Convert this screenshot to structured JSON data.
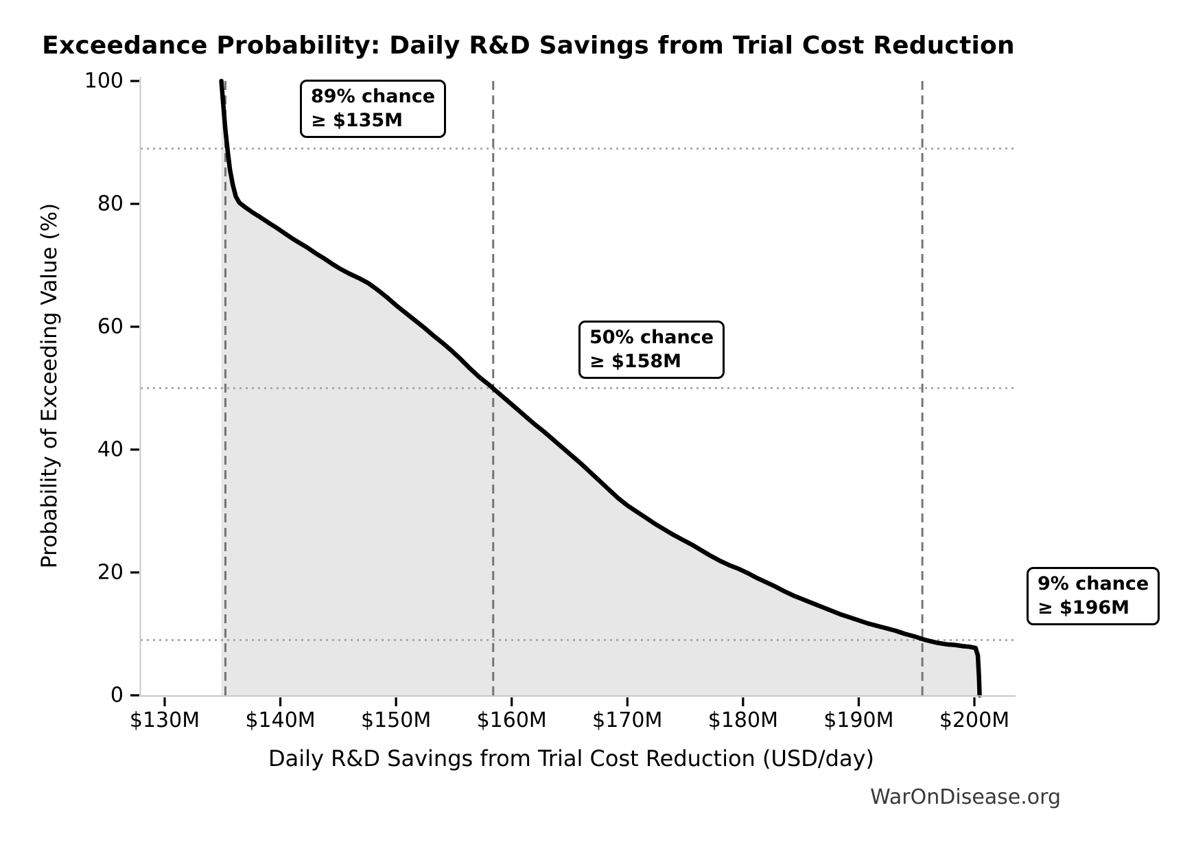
{
  "watermark": "WarOnDisease.org",
  "chart_data": {
    "type": "line",
    "title": "Exceedance Probability: Daily R&D Savings from Trial Cost Reduction",
    "xlabel": "Daily R&D Savings from Trial Cost Reduction (USD/day)",
    "ylabel": "Probability of Exceeding Value (%)",
    "x_unit": "USD millions per day",
    "xlim": [
      127.9,
      203.6
    ],
    "ylim": [
      0,
      100
    ],
    "grid": {
      "horizontal_dotted_pcts": [
        89,
        50,
        9
      ],
      "vertical_dashed_values": [
        135.25,
        158.4,
        195.5
      ]
    },
    "legend": "none",
    "x_tick_values": [
      130,
      140,
      150,
      160,
      170,
      180,
      190,
      200
    ],
    "x_tick_labels": [
      "$130M",
      "$140M",
      "$150M",
      "$160M",
      "$170M",
      "$180M",
      "$190M",
      "$200M"
    ],
    "y_tick_values": [
      0,
      20,
      40,
      60,
      80,
      100
    ],
    "y_tick_labels": [
      "0",
      "20",
      "40",
      "60",
      "80",
      "100"
    ],
    "annotations": [
      {
        "line1": "89% chance",
        "line2": "≥ $135M",
        "anchor_value_musd": 135,
        "anchor_pct": 89
      },
      {
        "line1": "50% chance",
        "line2": "≥ $158M",
        "anchor_value_musd": 158,
        "anchor_pct": 50
      },
      {
        "line1": "9% chance",
        "line2": "≥ $196M",
        "anchor_value_musd": 196,
        "anchor_pct": 9
      }
    ],
    "colors": {
      "curve": "#000000",
      "fill": "#e7e7e7",
      "dashed_guide": "#757575",
      "dotted_guide": "#aaaaaa",
      "spine": "#c9c9c9",
      "tick": "#000000",
      "annotation_bg": "#ffffff",
      "annotation_border": "#000000",
      "watermark_text": "#3a3a3a"
    },
    "series": [
      {
        "name": "Exceedance probability curve",
        "points": [
          [
            134.9,
            100
          ],
          [
            135.05,
            96.5
          ],
          [
            135.25,
            92
          ],
          [
            135.45,
            88.5
          ],
          [
            135.65,
            85.5
          ],
          [
            135.9,
            83
          ],
          [
            136.15,
            81.2
          ],
          [
            136.45,
            80.2
          ],
          [
            137,
            79.4
          ],
          [
            137.6,
            78.6
          ],
          [
            138.2,
            77.9
          ],
          [
            139,
            76.9
          ],
          [
            139.6,
            76.2
          ],
          [
            140.3,
            75.3
          ],
          [
            141,
            74.4
          ],
          [
            141.7,
            73.6
          ],
          [
            142.4,
            72.8
          ],
          [
            143.1,
            71.9
          ],
          [
            143.8,
            71.1
          ],
          [
            144.5,
            70.2
          ],
          [
            145.2,
            69.4
          ],
          [
            146,
            68.6
          ],
          [
            146.8,
            67.9
          ],
          [
            147.6,
            67.1
          ],
          [
            148.4,
            66
          ],
          [
            149.2,
            64.8
          ],
          [
            150,
            63.5
          ],
          [
            150.8,
            62.3
          ],
          [
            151.6,
            61.1
          ],
          [
            152.4,
            59.9
          ],
          [
            153.2,
            58.6
          ],
          [
            154,
            57.4
          ],
          [
            154.8,
            56.1
          ],
          [
            155.6,
            54.7
          ],
          [
            156.4,
            53.2
          ],
          [
            157.2,
            51.8
          ],
          [
            158,
            50.6
          ],
          [
            158.8,
            49.3
          ],
          [
            159.6,
            48
          ],
          [
            160.4,
            46.7
          ],
          [
            161.2,
            45.4
          ],
          [
            162,
            44.1
          ],
          [
            162.8,
            42.9
          ],
          [
            163.6,
            41.6
          ],
          [
            164.4,
            40.3
          ],
          [
            165.2,
            39
          ],
          [
            166,
            37.7
          ],
          [
            166.8,
            36.3
          ],
          [
            167.6,
            34.9
          ],
          [
            168.4,
            33.5
          ],
          [
            169.2,
            32.1
          ],
          [
            170,
            30.9
          ],
          [
            170.8,
            29.9
          ],
          [
            171.6,
            28.9
          ],
          [
            172.4,
            27.9
          ],
          [
            173.2,
            27
          ],
          [
            174,
            26.1
          ],
          [
            174.8,
            25.3
          ],
          [
            175.6,
            24.5
          ],
          [
            176.4,
            23.6
          ],
          [
            177.2,
            22.7
          ],
          [
            178,
            21.9
          ],
          [
            178.8,
            21.2
          ],
          [
            179.6,
            20.6
          ],
          [
            180.4,
            19.9
          ],
          [
            181.2,
            19.1
          ],
          [
            182,
            18.4
          ],
          [
            182.8,
            17.7
          ],
          [
            183.6,
            16.9
          ],
          [
            184.4,
            16.2
          ],
          [
            185.2,
            15.6
          ],
          [
            186,
            15
          ],
          [
            186.8,
            14.4
          ],
          [
            187.6,
            13.8
          ],
          [
            188.4,
            13.2
          ],
          [
            189.2,
            12.7
          ],
          [
            190,
            12.2
          ],
          [
            190.8,
            11.7
          ],
          [
            191.6,
            11.3
          ],
          [
            192.4,
            10.9
          ],
          [
            193.2,
            10.5
          ],
          [
            194,
            10
          ],
          [
            194.8,
            9.6
          ],
          [
            195.6,
            9.1
          ],
          [
            196.2,
            8.8
          ],
          [
            196.9,
            8.5
          ],
          [
            197.6,
            8.3
          ],
          [
            198.3,
            8.2
          ],
          [
            199,
            8
          ],
          [
            199.6,
            7.9
          ],
          [
            200.1,
            7.7
          ],
          [
            200.3,
            6.5
          ],
          [
            200.4,
            3
          ],
          [
            200.45,
            0
          ]
        ]
      }
    ]
  }
}
